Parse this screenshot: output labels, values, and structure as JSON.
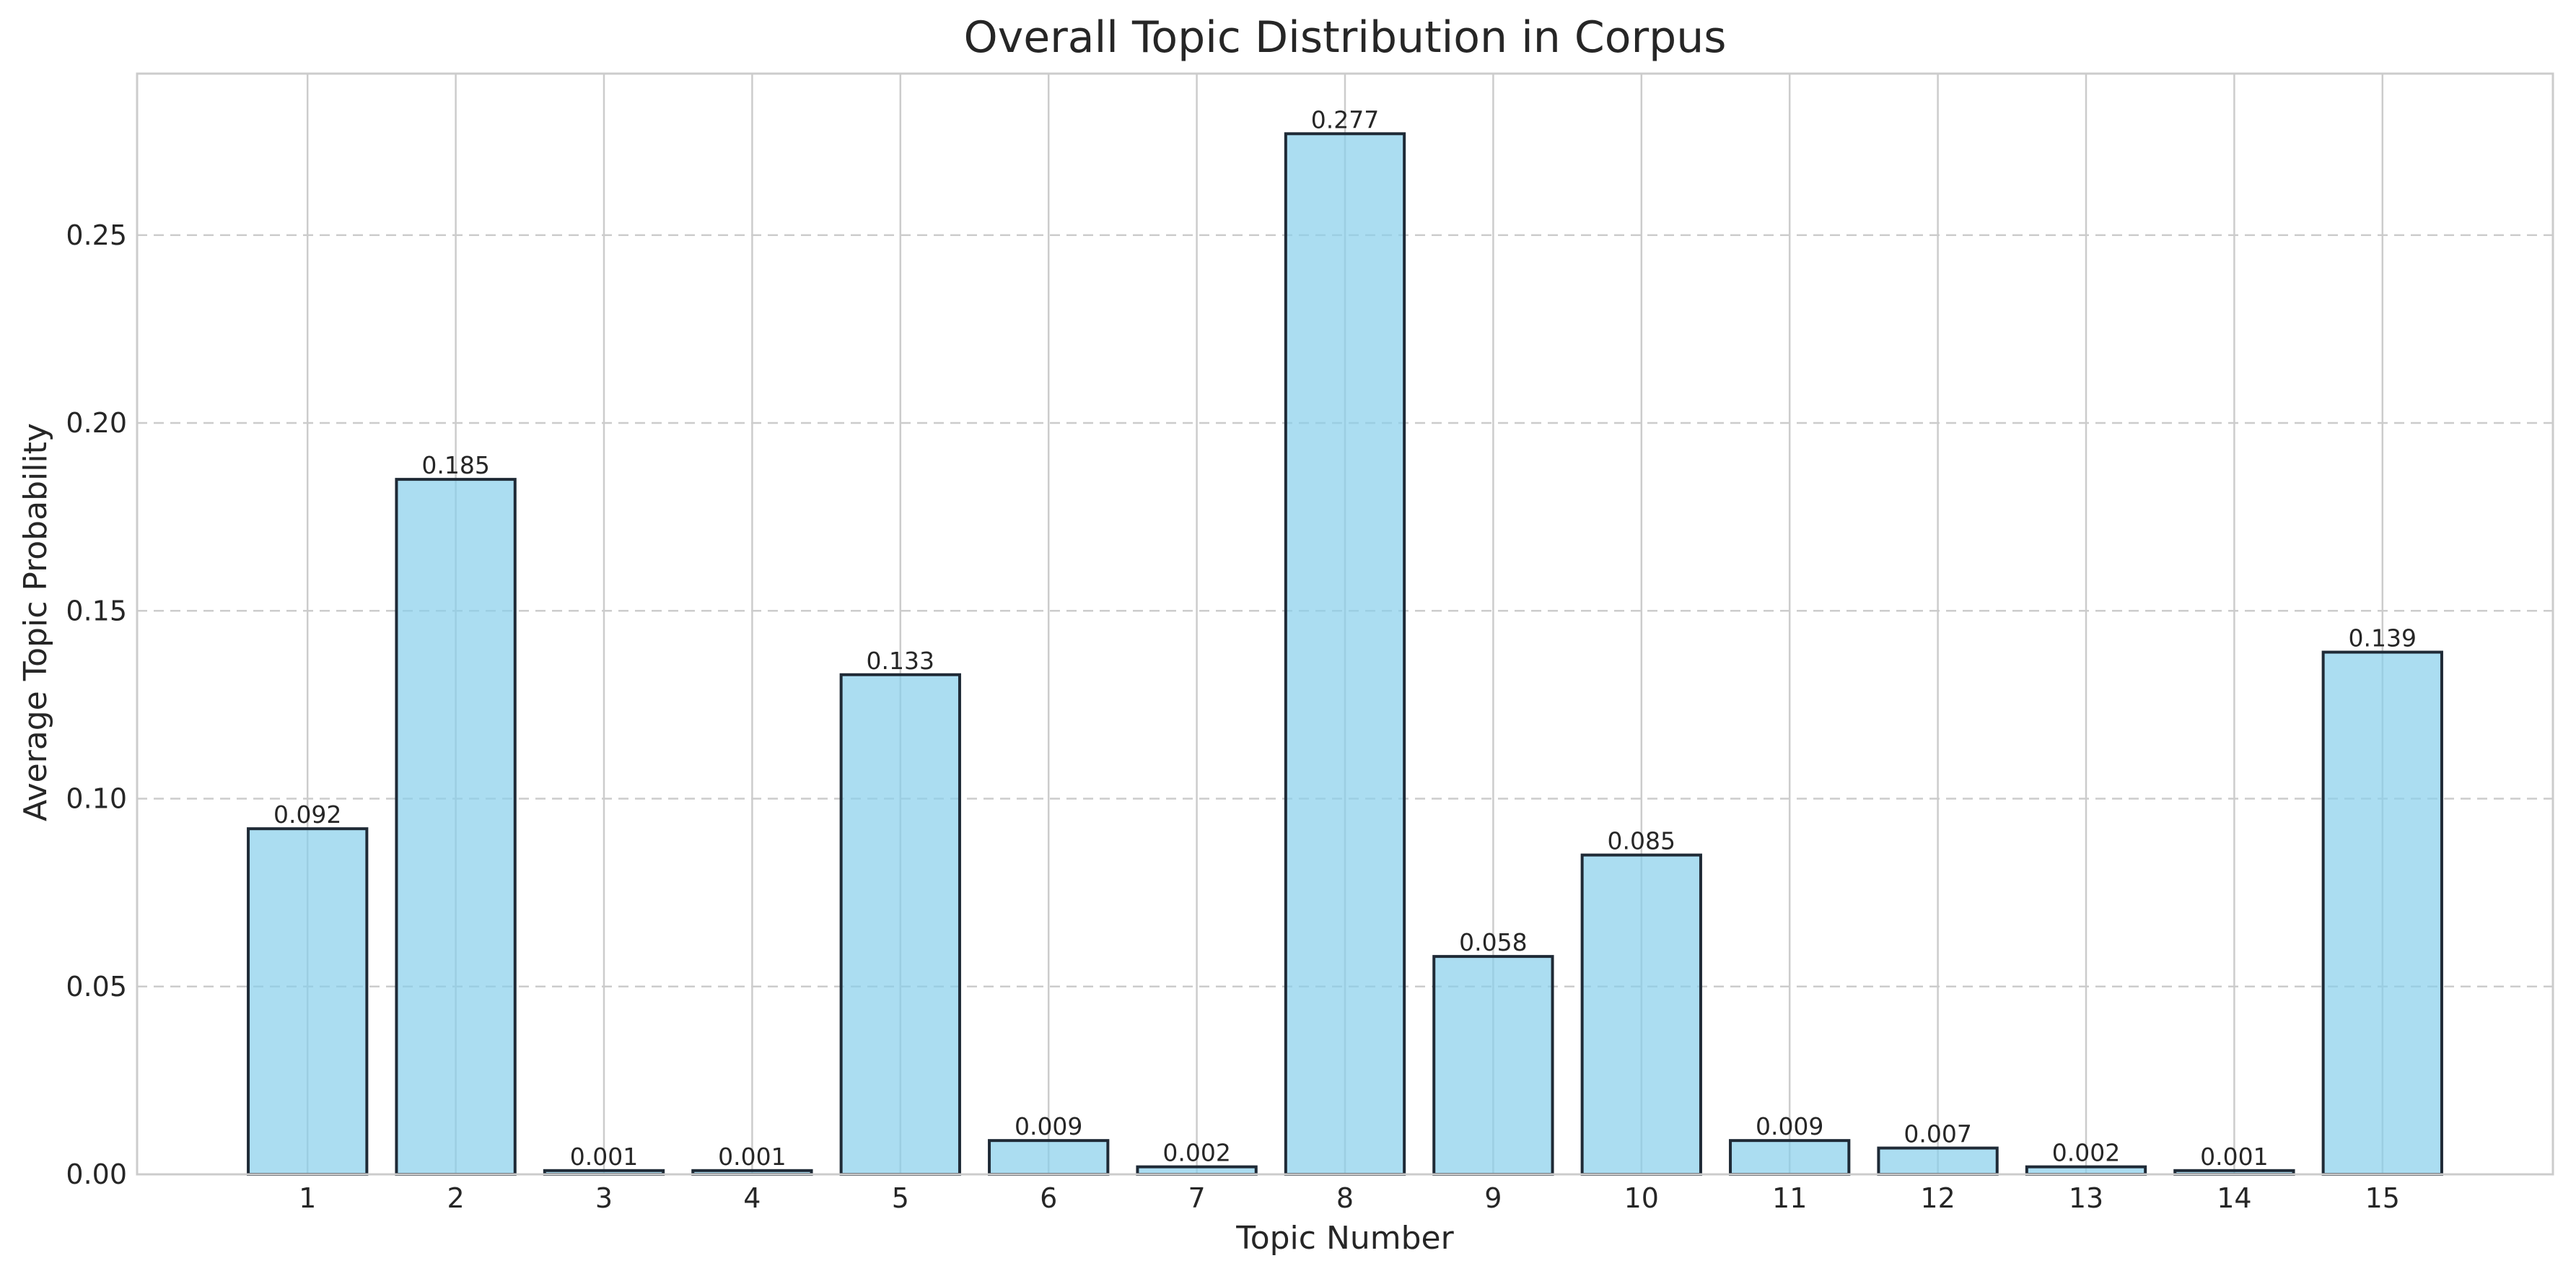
{
  "chart_data": {
    "type": "bar",
    "title": "Overall Topic Distribution in Corpus",
    "xlabel": "Topic Number",
    "ylabel": "Average Topic Probability",
    "categories": [
      "1",
      "2",
      "3",
      "4",
      "5",
      "6",
      "7",
      "8",
      "9",
      "10",
      "11",
      "12",
      "13",
      "14",
      "15"
    ],
    "values": [
      0.092,
      0.185,
      0.001,
      0.001,
      0.133,
      0.009,
      0.002,
      0.277,
      0.058,
      0.085,
      0.009,
      0.007,
      0.002,
      0.001,
      0.139
    ],
    "value_labels": [
      "0.092",
      "0.185",
      "0.001",
      "0.001",
      "0.133",
      "0.009",
      "0.002",
      "0.277",
      "0.058",
      "0.085",
      "0.009",
      "0.007",
      "0.002",
      "0.001",
      "0.139"
    ],
    "ylim": [
      0,
      0.293
    ],
    "yticks": [
      0.0,
      0.05,
      0.1,
      0.15,
      0.2,
      0.25
    ],
    "ytick_labels": [
      "0.00",
      "0.05",
      "0.10",
      "0.15",
      "0.20",
      "0.25"
    ],
    "grid": {
      "x": "solid",
      "y": "dashed"
    },
    "colors": {
      "bar_fill": "#87ceeb",
      "bar_edge": "#1f2a36",
      "grid": "#cccccc",
      "frame": "#cccccc",
      "text": "#262626"
    }
  }
}
